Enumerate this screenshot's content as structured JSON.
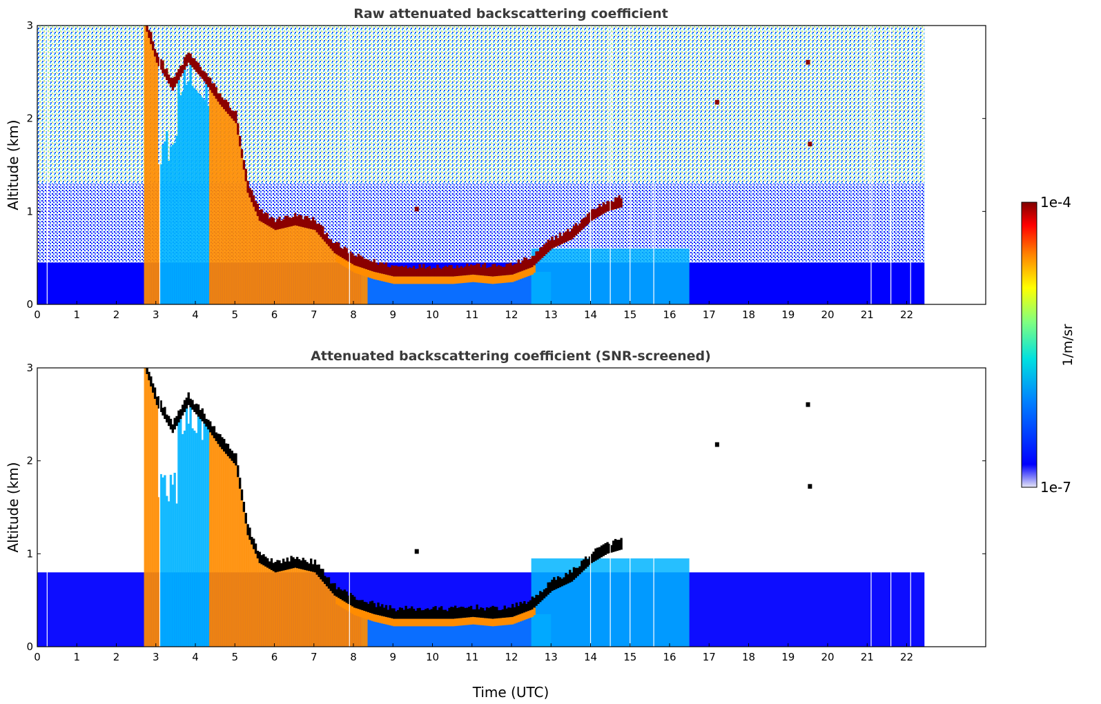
{
  "chart_data": [
    {
      "type": "heatmap",
      "title": "Raw attenuated backscattering coefficient",
      "ylabel": "Altitude (km)",
      "xlabel": "",
      "xlim": [
        0,
        24
      ],
      "ylim": [
        0,
        3
      ],
      "x_ticks": [
        "0",
        "1",
        "2",
        "3",
        "4",
        "5",
        "6",
        "7",
        "8",
        "9",
        "10",
        "11",
        "12",
        "13",
        "14",
        "15",
        "16",
        "17",
        "18",
        "19",
        "20",
        "21",
        "22"
      ],
      "y_ticks": [
        "0",
        "1",
        "2",
        "3"
      ],
      "data_end_time": 22.45,
      "features": {
        "cloud_base_km": [
          [
            2.7,
            3.0
          ],
          [
            3.0,
            2.6
          ],
          [
            3.4,
            2.3
          ],
          [
            3.8,
            2.6
          ],
          [
            4.2,
            2.4
          ],
          [
            4.6,
            2.15
          ],
          [
            5.0,
            1.95
          ],
          [
            5.3,
            1.2
          ],
          [
            5.6,
            0.9
          ],
          [
            6.0,
            0.8
          ],
          [
            6.5,
            0.85
          ],
          [
            7.0,
            0.8
          ],
          [
            7.5,
            0.55
          ],
          [
            8.0,
            0.42
          ],
          [
            8.5,
            0.35
          ],
          [
            9.0,
            0.3
          ],
          [
            9.5,
            0.3
          ],
          [
            10.0,
            0.3
          ],
          [
            10.5,
            0.3
          ],
          [
            11.0,
            0.32
          ],
          [
            11.5,
            0.3
          ],
          [
            12.0,
            0.32
          ],
          [
            12.5,
            0.4
          ],
          [
            13.0,
            0.6
          ],
          [
            13.5,
            0.7
          ],
          [
            14.0,
            0.9
          ],
          [
            14.4,
            1.0
          ],
          [
            14.8,
            1.05
          ]
        ]
      }
    },
    {
      "type": "heatmap",
      "title": "Attenuated backscattering coefficient (SNR-screened)",
      "ylabel": "Altitude (km)",
      "xlabel": "Time (UTC)",
      "xlim": [
        0,
        24
      ],
      "ylim": [
        0,
        3
      ],
      "x_ticks": [
        "0",
        "1",
        "2",
        "3",
        "4",
        "5",
        "6",
        "7",
        "8",
        "9",
        "10",
        "11",
        "12",
        "13",
        "14",
        "15",
        "16",
        "17",
        "18",
        "19",
        "20",
        "21",
        "22"
      ],
      "y_ticks": [
        "0",
        "1",
        "2",
        "3"
      ],
      "data_end_time": 22.45
    }
  ],
  "colorbar": {
    "max_label": "1e-4",
    "min_label": "1e-7",
    "unit": "1/m/sr",
    "colormap": "jet",
    "stops": [
      "#e6e6f5",
      "#0000ff",
      "#0080ff",
      "#00e0e0",
      "#80ff80",
      "#ffff00",
      "#ff8000",
      "#ff0000",
      "#800000"
    ]
  },
  "colors": {
    "noise_low": "#0000ff",
    "noise_mid": "#00b4ff",
    "noise_high": "#a0f0a0",
    "aerosol_layer": "#0a6eff",
    "rain": "#ff8c00",
    "cloud": "#8b0000",
    "screened_cloud": "#000000"
  }
}
